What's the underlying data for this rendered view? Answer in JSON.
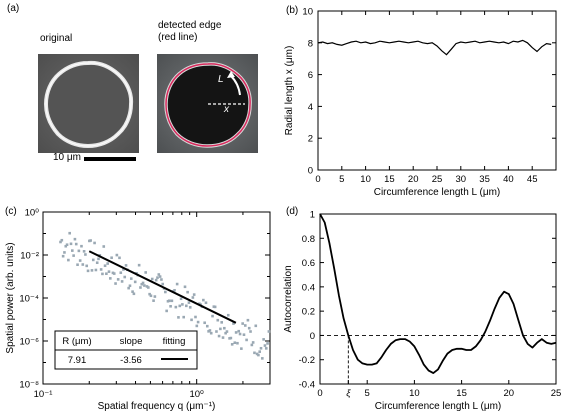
{
  "panel_a": {
    "letter": "(a)",
    "original_label": "original",
    "detected_label_line1": "detected edge",
    "detected_label_line2": "(red line)",
    "scalebar_label": "10 μm",
    "arrow_label_L": "L",
    "arrow_label_x": "x",
    "colors": {
      "edge": "#d92a5e",
      "cell_dark": "#141414",
      "background": "#5d5d5d",
      "halo": "#e6e6e6"
    }
  },
  "chart_data": [
    {
      "panel": "(b)",
      "type": "line",
      "xlabel": "Circumference length L (μm)",
      "ylabel": "Radial length x (μm)",
      "xlim": [
        0,
        50
      ],
      "ylim": [
        0,
        10
      ],
      "xticks": [
        0,
        5,
        10,
        15,
        20,
        25,
        30,
        35,
        40,
        45
      ],
      "yticks": [
        0,
        2,
        4,
        6,
        8,
        10
      ],
      "series": [
        {
          "x": [
            0,
            1,
            2,
            3,
            4,
            5,
            6,
            7,
            8,
            9,
            10,
            11,
            12,
            13,
            14,
            15,
            16,
            17,
            18,
            19,
            20,
            21,
            22,
            23,
            24,
            25,
            26,
            27,
            28,
            29,
            30,
            31,
            32,
            33,
            34,
            35,
            36,
            37,
            38,
            39,
            40,
            41,
            42,
            43,
            44,
            45,
            46,
            47,
            48,
            49
          ],
          "y": [
            8.0,
            8.05,
            7.95,
            8.0,
            7.9,
            7.85,
            7.95,
            8.05,
            8.1,
            8.0,
            8.05,
            7.95,
            8.0,
            8.1,
            8.05,
            8.0,
            8.05,
            8.1,
            8.05,
            8.0,
            8.05,
            8.1,
            8.0,
            7.95,
            8.0,
            7.8,
            7.5,
            7.25,
            7.6,
            7.95,
            8.05,
            8.0,
            8.05,
            8.1,
            8.0,
            8.05,
            8.1,
            8.05,
            8.0,
            8.05,
            7.95,
            8.1,
            8.05,
            8.15,
            8.0,
            7.7,
            7.45,
            7.75,
            7.95,
            7.9
          ]
        }
      ]
    },
    {
      "panel": "(c)",
      "type": "scatter",
      "xlabel": "Spatial frequency q (μm⁻¹)",
      "ylabel": "Spatial power (arb. units)",
      "xscale": "log",
      "yscale": "log",
      "xlim": [
        0.1,
        3
      ],
      "ylim": [
        1e-08,
        1
      ],
      "xtick_labels": [
        "10⁻¹",
        "10⁰"
      ],
      "ytick_labels": [
        "10⁻⁸",
        "10⁻⁶",
        "10⁻⁴",
        "10⁻²",
        "10⁰"
      ],
      "points_color": "#9aa8b3",
      "fit_line": {
        "x": [
          0.2,
          1.8
        ],
        "y": [
          0.015,
          7e-06
        ]
      },
      "table": {
        "headers": [
          "R (μm)",
          "slope",
          "fitting"
        ],
        "row": [
          "7.91",
          "-3.56",
          ""
        ]
      }
    },
    {
      "panel": "(d)",
      "type": "line",
      "xlabel": "Circumference length L (μm)",
      "ylabel": "Autocorrelation",
      "xlim": [
        0,
        25
      ],
      "ylim": [
        -0.4,
        1
      ],
      "xtick_labels": [
        "0",
        "ξ",
        "5",
        "10",
        "15",
        "20",
        "25"
      ],
      "yticks": [
        -0.4,
        -0.2,
        0,
        0.2,
        0.4,
        0.6,
        0.8,
        1
      ],
      "xi": 3.0,
      "series": [
        {
          "x": [
            0,
            0.5,
            1,
            1.5,
            2,
            2.5,
            3,
            3.5,
            4,
            4.5,
            5,
            5.5,
            6,
            6.5,
            7,
            7.5,
            8,
            8.5,
            9,
            9.5,
            10,
            10.5,
            11,
            11.5,
            12,
            12.5,
            13,
            13.5,
            14,
            14.5,
            15,
            15.5,
            16,
            16.5,
            17,
            17.5,
            18,
            18.5,
            19,
            19.5,
            20,
            20.5,
            21,
            21.5,
            22,
            22.5,
            23,
            23.5,
            24,
            24.5,
            25
          ],
          "y": [
            1.0,
            0.93,
            0.76,
            0.55,
            0.33,
            0.14,
            0.0,
            -0.12,
            -0.2,
            -0.23,
            -0.24,
            -0.24,
            -0.23,
            -0.18,
            -0.12,
            -0.07,
            -0.04,
            -0.03,
            -0.03,
            -0.05,
            -0.09,
            -0.16,
            -0.24,
            -0.29,
            -0.31,
            -0.28,
            -0.21,
            -0.15,
            -0.12,
            -0.11,
            -0.11,
            -0.12,
            -0.12,
            -0.09,
            -0.04,
            0.03,
            0.12,
            0.22,
            0.31,
            0.36,
            0.34,
            0.26,
            0.13,
            0.0,
            -0.07,
            -0.1,
            -0.06,
            -0.03,
            -0.06,
            -0.07,
            -0.06
          ]
        }
      ]
    }
  ]
}
